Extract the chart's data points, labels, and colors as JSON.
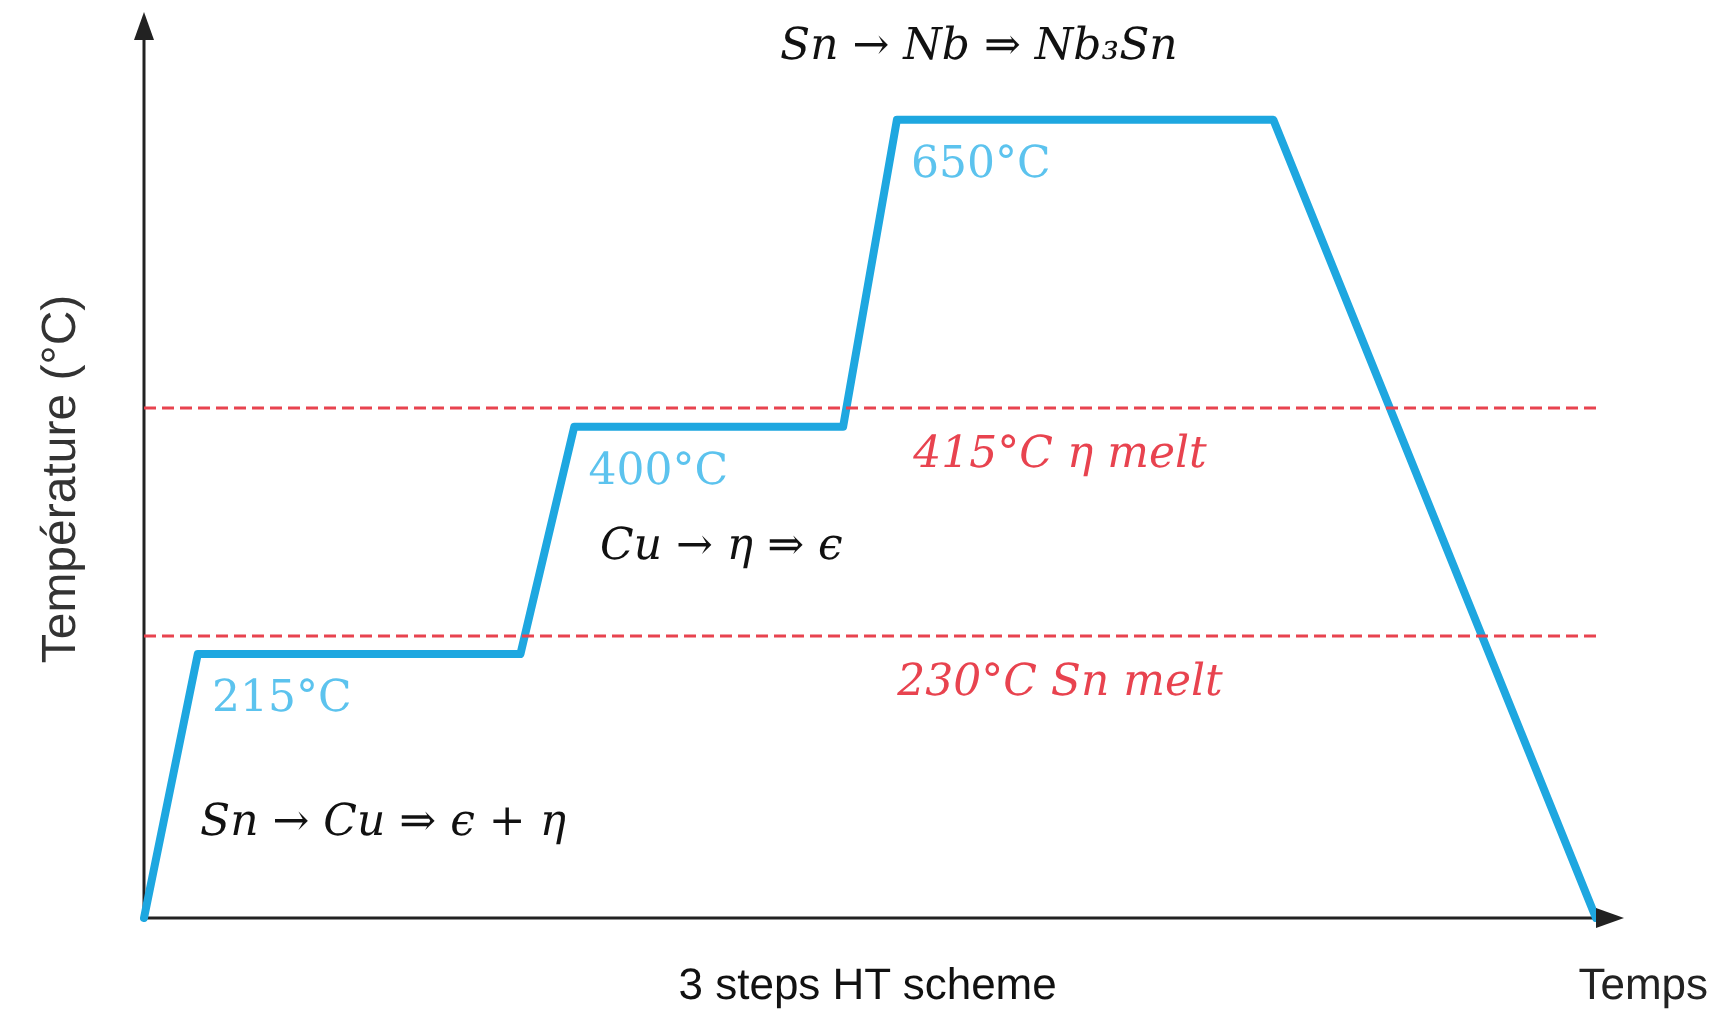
{
  "chart_data": {
    "type": "line",
    "xlabel": "Temps",
    "ylabel": "Température (°C)",
    "tick_labels": false,
    "marker": "none",
    "line_style": "solid",
    "categories": [
      null,
      null,
      null,
      null,
      null,
      null,
      null,
      null,
      null,
      null,
      null,
      null,
      null,
      null,
      null,
      null,
      null,
      null,
      null,
      null,
      null,
      null,
      null,
      null,
      null,
      null,
      null,
      null
    ],
    "series": [
      {
        "color": "#1ea7e0",
        "values": [
          0,
          215,
          null,
          null,
          null,
          null,
          null,
          215,
          400,
          null,
          null,
          null,
          null,
          400,
          650,
          null,
          null,
          null,
          null,
          null,
          null,
          650,
          null,
          null,
          null,
          null,
          null,
          0
        ],
        "value_labels": [
          null,
          "215°C",
          null,
          null,
          null,
          null,
          null,
          null,
          "400°C",
          null,
          null,
          null,
          null,
          null,
          "650°C",
          null,
          null,
          null,
          null,
          null,
          null,
          null,
          null,
          null,
          null,
          null,
          null,
          null
        ]
      }
    ],
    "ref_lines": [
      {
        "axis": "y",
        "value": 415,
        "label": "415°C η melt",
        "color": "#e8434f",
        "line_style": "dashed"
      },
      {
        "axis": "y",
        "value": 230,
        "label": "230°C Sn melt",
        "color": "#e8434f",
        "line_style": "dashed"
      }
    ],
    "annotations": [
      "Sn → Cu ⇒ ϵ + η",
      "Cu → η ⇒ ϵ",
      "Sn → Nb ⇒ Nb₃Sn",
      "3 steps HT scheme"
    ]
  }
}
